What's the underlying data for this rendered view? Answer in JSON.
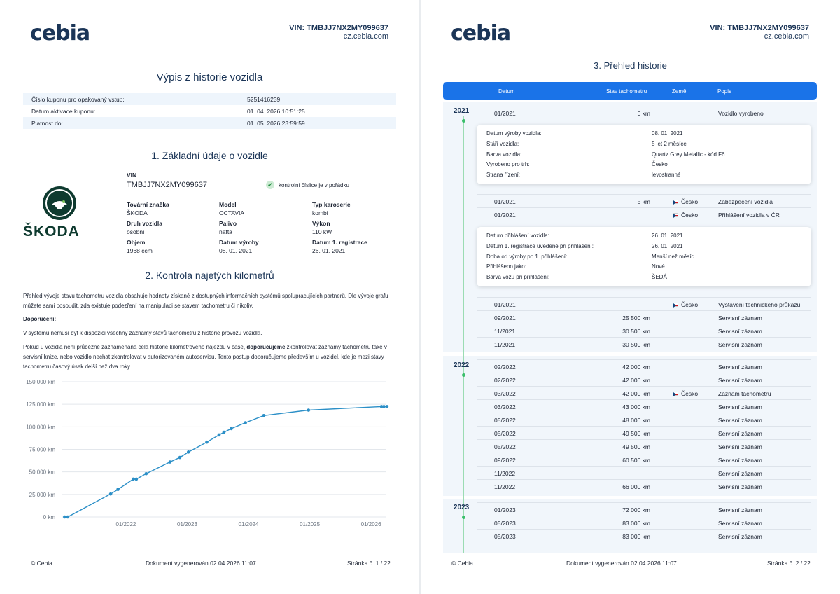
{
  "brand": {
    "logo_text": "cebia",
    "accent": "#1a73e8",
    "dark": "#1b3557"
  },
  "header": {
    "vin": "VIN: TMBJJ7NX2MY099637",
    "url": "cz.cebia.com"
  },
  "page1": {
    "title": "Výpis z historie vozidla",
    "coupon": [
      {
        "label": "Číslo kuponu pro opakovaný vstup:",
        "value": "5251416239"
      },
      {
        "label": "Datum aktivace kuponu:",
        "value": "01. 04. 2026 10:51:25"
      },
      {
        "label": "Platnost do:",
        "value": "01. 05. 2026 23:59:59"
      }
    ],
    "section1_title": "1. Základní údaje o vozidle",
    "brand_logo_text": "ŠKODA",
    "vin_label": "VIN",
    "vin_value": "TMBJJ7NX2MY099637",
    "check_text": "kontrolní číslice je v pořádku",
    "specs": [
      {
        "k": "Tovární značka",
        "v": "ŠKODA"
      },
      {
        "k": "Model",
        "v": "OCTAVIA"
      },
      {
        "k": "Typ karoserie",
        "v": "kombi"
      },
      {
        "k": "Druh vozidla",
        "v": "osobní"
      },
      {
        "k": "Palivo",
        "v": "nafta"
      },
      {
        "k": "Výkon",
        "v": "110 kW"
      },
      {
        "k": "Objem",
        "v": "1968 ccm"
      },
      {
        "k": "Datum výroby",
        "v": "08. 01. 2021"
      },
      {
        "k": "Datum 1. registrace",
        "v": "26. 01. 2021"
      }
    ],
    "section2_title": "2. Kontrola najetých kilometrů",
    "para1": "Přehled vývoje stavu tachometru vozidla obsahuje hodnoty získané z dostupných informačních systémů spolupracujících partnerů. Dle vývoje grafu můžete sami posoudit, zda existuje podezření na manipulaci se stavem tachometru či nikoliv.",
    "recommend_label": "Doporučení:",
    "para2": "V systému nemusí být k dispozici všechny záznamy stavů tachometru z historie provozu vozidla.",
    "para3a": "Pokud u vozidla není průběžně zaznamenaná celá historie kilometrového nájezdu v čase, ",
    "para3b": "doporučujeme",
    "para3c": " zkontrolovat záznamy tachometru také v servisní knize, nebo vozidlo nechat zkontrolovat v autorizovaném autoservisu. Tento postup doporučujeme především u vozidel, kde je mezi stavy tachometru časový úsek delší než dva roky.",
    "footer_left": "© Cebia",
    "footer_mid": "Dokument vygenerován 02.04.2026 11:07",
    "footer_right": "Stránka č. 1 / 22"
  },
  "chart_data": {
    "type": "line",
    "title": "",
    "xlabel": "",
    "ylabel": "",
    "y_tick_labels": [
      "0 km",
      "25 000 km",
      "50 000 km",
      "75 000 km",
      "100 000 km",
      "125 000 km",
      "150 000 km"
    ],
    "y_ticks": [
      0,
      25000,
      50000,
      75000,
      100000,
      125000,
      150000
    ],
    "x_tick_labels": [
      "01/2022",
      "01/2023",
      "01/2024",
      "01/2025",
      "01/2026"
    ],
    "x_ticks": [
      2022.0,
      2023.0,
      2024.0,
      2025.0,
      2026.0
    ],
    "ylim": [
      0,
      150000
    ],
    "xlim": [
      2020.95,
      2026.25
    ],
    "color": "#2b8fc7",
    "x": [
      2021.0,
      2021.05,
      2021.75,
      2021.87,
      2022.12,
      2022.17,
      2022.33,
      2022.72,
      2022.88,
      2023.02,
      2023.32,
      2023.52,
      2023.6,
      2023.72,
      2023.95,
      2024.25,
      2024.98,
      2026.17,
      2026.21,
      2026.26
    ],
    "y": [
      0,
      0,
      25500,
      30500,
      42000,
      42000,
      48000,
      61000,
      66000,
      72000,
      83000,
      91000,
      94000,
      98000,
      104500,
      112500,
      118500,
      122500,
      122500,
      122500
    ]
  },
  "page2": {
    "title": "3. Přehled historie",
    "columns": {
      "date": "Datum",
      "odo": "Stav tachometru",
      "country": "Země",
      "desc": "Popis"
    },
    "years": [
      "2021",
      "2022",
      "2023"
    ],
    "rows_2021a": [
      {
        "d": "01/2021",
        "km": "0 km",
        "c": "",
        "p": "Vozidlo vyrobeno"
      }
    ],
    "card1": [
      {
        "k": "Datum výroby vozidla:",
        "v": "08. 01. 2021"
      },
      {
        "k": "Stáří vozidla:",
        "v": "5 let 2 měsíce"
      },
      {
        "k": "Barva vozidla:",
        "v": "Quartz Grey Metallic - kód F6"
      },
      {
        "k": "Vyrobeno pro trh:",
        "v": "Česko"
      },
      {
        "k": "Strana řízení:",
        "v": "levostranné"
      }
    ],
    "rows_2021b": [
      {
        "d": "01/2021",
        "km": "5 km",
        "c": "Česko",
        "p": "Zabezpečení vozidla"
      },
      {
        "d": "01/2021",
        "km": "",
        "c": "Česko",
        "p": "Přihlášení vozidla v ČR"
      }
    ],
    "card2": [
      {
        "k": "Datum přihlášení vozidla:",
        "v": "26. 01. 2021"
      },
      {
        "k": "Datum 1. registrace uvedené při přihlášení:",
        "v": "26. 01. 2021"
      },
      {
        "k": "Doba od výroby po 1. přihlášení:",
        "v": "Menší než měsíc"
      },
      {
        "k": "Přihlášeno jako:",
        "v": "Nové"
      },
      {
        "k": "Barva vozu při přihlášení:",
        "v": "ŠEDÁ"
      }
    ],
    "rows_2021c": [
      {
        "d": "01/2021",
        "km": "",
        "c": "Česko",
        "p": "Vystavení technického průkazu"
      },
      {
        "d": "09/2021",
        "km": "25 500 km",
        "c": "",
        "p": "Servisní záznam"
      },
      {
        "d": "11/2021",
        "km": "30 500 km",
        "c": "",
        "p": "Servisní záznam"
      },
      {
        "d": "11/2021",
        "km": "30 500 km",
        "c": "",
        "p": "Servisní záznam"
      }
    ],
    "rows_2022": [
      {
        "d": "02/2022",
        "km": "42 000 km",
        "c": "",
        "p": "Servisní záznam"
      },
      {
        "d": "02/2022",
        "km": "42 000 km",
        "c": "",
        "p": "Servisní záznam"
      },
      {
        "d": "03/2022",
        "km": "42 000 km",
        "c": "Česko",
        "p": "Záznam tachometru"
      },
      {
        "d": "03/2022",
        "km": "43 000 km",
        "c": "",
        "p": "Servisní záznam"
      },
      {
        "d": "05/2022",
        "km": "48 000 km",
        "c": "",
        "p": "Servisní záznam"
      },
      {
        "d": "05/2022",
        "km": "49 500 km",
        "c": "",
        "p": "Servisní záznam"
      },
      {
        "d": "05/2022",
        "km": "49 500 km",
        "c": "",
        "p": "Servisní záznam"
      },
      {
        "d": "09/2022",
        "km": "60 500 km",
        "c": "",
        "p": "Servisní záznam"
      },
      {
        "d": "11/2022",
        "km": "",
        "c": "",
        "p": "Servisní záznam"
      },
      {
        "d": "11/2022",
        "km": "66 000 km",
        "c": "",
        "p": "Servisní záznam"
      }
    ],
    "rows_2023": [
      {
        "d": "01/2023",
        "km": "72 000 km",
        "c": "",
        "p": "Servisní záznam"
      },
      {
        "d": "05/2023",
        "km": "83 000 km",
        "c": "",
        "p": "Servisní záznam"
      },
      {
        "d": "05/2023",
        "km": "83 000 km",
        "c": "",
        "p": "Servisní záznam"
      }
    ],
    "footer_left": "© Cebia",
    "footer_mid": "Dokument vygenerován 02.04.2026 11:07",
    "footer_right": "Stránka č. 2 / 22"
  }
}
